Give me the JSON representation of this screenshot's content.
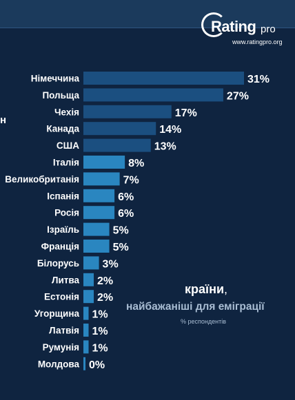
{
  "logo": {
    "name": "Rating",
    "suffix": "pro",
    "url": "www.ratingpro.org"
  },
  "left_edge_text": "н",
  "chart_data": {
    "type": "bar",
    "orientation": "horizontal",
    "title_word": "країни",
    "title_comma": ",",
    "title_line2": "найбажаніші для еміграції",
    "subtitle": "% респондентів",
    "categories": [
      "Німеччина",
      "Польща",
      "Чехія",
      "Канада",
      "США",
      "Італія",
      "Великобританія",
      "Іспанія",
      "Росія",
      "Ізраїль",
      "Франція",
      "Білорусь",
      "Литва",
      "Естонія",
      "Угорщина",
      "Латвія",
      "Румунія",
      "Молдова"
    ],
    "values": [
      31,
      27,
      17,
      14,
      13,
      8,
      7,
      6,
      6,
      5,
      5,
      3,
      2,
      2,
      1,
      1,
      1,
      0
    ],
    "value_labels": [
      "31%",
      "27%",
      "17%",
      "14%",
      "13%",
      "8%",
      "7%",
      "6%",
      "6%",
      "5%",
      "5%",
      "3%",
      "2%",
      "2%",
      "1%",
      "1%",
      "1%",
      "0%"
    ],
    "xlim": [
      0,
      31
    ],
    "grid": false,
    "colors": {
      "dark": "#1b4f80",
      "light": "#2a86c0",
      "background": "#0f2440"
    }
  }
}
